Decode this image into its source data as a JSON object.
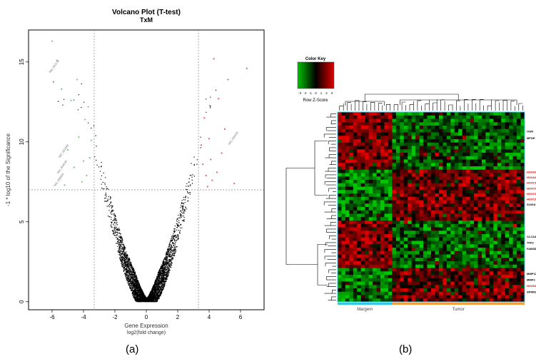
{
  "panels": {
    "a": "(a)",
    "b": "(b)"
  },
  "chart_data": [
    {
      "type": "scatter",
      "title": "Volcano Plot (T-test)",
      "subtitle": "TxM",
      "xlabel": "Gene Expression",
      "xlabel2": "log2(fold change)",
      "ylabel": "-1 * log10 of the Significance",
      "xlim": [
        -7.5,
        7.5
      ],
      "ylim": [
        -0.5,
        17
      ],
      "xticks": [
        -6,
        -4,
        -2,
        0,
        2,
        4,
        6
      ],
      "yticks": [
        0,
        5,
        10,
        15
      ],
      "thresholds": {
        "x": [
          -3.32,
          3.32
        ],
        "y": 7.0
      },
      "grid": false,
      "colors": {
        "points": "#000000",
        "up": "#e06060",
        "down": "#7fc47f",
        "threshold": "#888888"
      },
      "up_points": [
        {
          "x": 4.2,
          "y": 7.6
        },
        {
          "x": 3.9,
          "y": 7.2
        },
        {
          "x": 4.5,
          "y": 8.1
        },
        {
          "x": 3.6,
          "y": 8.6
        },
        {
          "x": 4.8,
          "y": 9.3
        },
        {
          "x": 4.0,
          "y": 10.2
        },
        {
          "x": 3.7,
          "y": 11.5
        },
        {
          "x": 4.6,
          "y": 12.7
        },
        {
          "x": 5.2,
          "y": 13.9
        },
        {
          "x": 6.4,
          "y": 14.6
        },
        {
          "x": 5.6,
          "y": 7.4
        },
        {
          "x": 4.3,
          "y": 15.2
        },
        {
          "x": 3.5,
          "y": 9.8
        },
        {
          "x": 4.1,
          "y": 8.9
        },
        {
          "x": 5.0,
          "y": 10.8
        },
        {
          "x": 3.8,
          "y": 7.9
        }
      ],
      "down_points": [
        {
          "x": -4.1,
          "y": 7.5
        },
        {
          "x": -3.8,
          "y": 7.9
        },
        {
          "x": -4.6,
          "y": 8.4
        },
        {
          "x": -3.6,
          "y": 9.0
        },
        {
          "x": -5.0,
          "y": 9.5
        },
        {
          "x": -4.3,
          "y": 10.3
        },
        {
          "x": -3.9,
          "y": 11.4
        },
        {
          "x": -4.8,
          "y": 12.6
        },
        {
          "x": -5.4,
          "y": 13.3
        },
        {
          "x": -6.0,
          "y": 16.3
        },
        {
          "x": -5.7,
          "y": 15.1
        },
        {
          "x": -4.4,
          "y": 13.9
        },
        {
          "x": -3.5,
          "y": 10.1
        },
        {
          "x": -4.0,
          "y": 8.8
        },
        {
          "x": -5.2,
          "y": 7.3
        },
        {
          "x": -3.7,
          "y": 12.2
        }
      ],
      "annotations": [
        {
          "text": "NM_001130",
          "x": -6.1,
          "y": 14.3
        },
        {
          "text": "NM_002483",
          "x": -5.5,
          "y": 9.0
        },
        {
          "text": "NM_004530",
          "x": -5.6,
          "y": 8.0
        },
        {
          "text": "NM_006500",
          "x": -5.8,
          "y": 7.2
        },
        {
          "text": "NM_002425",
          "x": 5.3,
          "y": 9.8
        }
      ]
    },
    {
      "type": "heatmap",
      "title": "Color Key",
      "key_label": "Row Z-Score",
      "key_ticks": [
        "-3",
        "-2",
        "-1",
        "0",
        "1",
        "2",
        "3"
      ],
      "colors": {
        "low": "#00c000",
        "mid": "#000000",
        "high": "#e00000"
      },
      "n_rows": 56,
      "n_cols": 48,
      "margem_cols": 14,
      "groups": [
        {
          "name": "Margem",
          "color": "#33c8e6"
        },
        {
          "name": "Tumor",
          "color": "#f0a040"
        }
      ],
      "row_blocks": [
        {
          "rows": 17,
          "margem": "high"
        },
        {
          "rows": 15,
          "margem": "low"
        },
        {
          "rows": 14,
          "margem": "high"
        },
        {
          "rows": 10,
          "margem": "low"
        }
      ],
      "gene_labels": [
        {
          "text": "OGN",
          "color": "#000000",
          "row": 6
        },
        {
          "text": "MFGE",
          "color": "#000000",
          "row": 8
        },
        {
          "text": "HOXA10",
          "color": "#e00000",
          "row": 18
        },
        {
          "text": "HOXA11",
          "color": "#e00000",
          "row": 19.6
        },
        {
          "text": "HOXC10",
          "color": "#e00000",
          "row": 21.2
        },
        {
          "text": "HOXC11",
          "color": "#e00000",
          "row": 22.8
        },
        {
          "text": "HOXC9",
          "color": "#e00000",
          "row": 24.4
        },
        {
          "text": "HOXC13",
          "color": "#e00000",
          "row": 26
        },
        {
          "text": "S100A7",
          "color": "#000000",
          "row": 27.6
        },
        {
          "text": "CLCA4",
          "color": "#000000",
          "row": 37
        },
        {
          "text": "TFF3",
          "color": "#000000",
          "row": 38.8
        },
        {
          "text": "FAM3D",
          "color": "#000000",
          "row": 40.6
        },
        {
          "text": "MMP12",
          "color": "#000000",
          "row": 48
        },
        {
          "text": "MMP3",
          "color": "#000000",
          "row": 49.8
        },
        {
          "text": "HOXD10",
          "color": "#e00000",
          "row": 51.6
        },
        {
          "text": "SPRR2G",
          "color": "#000000",
          "row": 53.4
        }
      ]
    }
  ]
}
